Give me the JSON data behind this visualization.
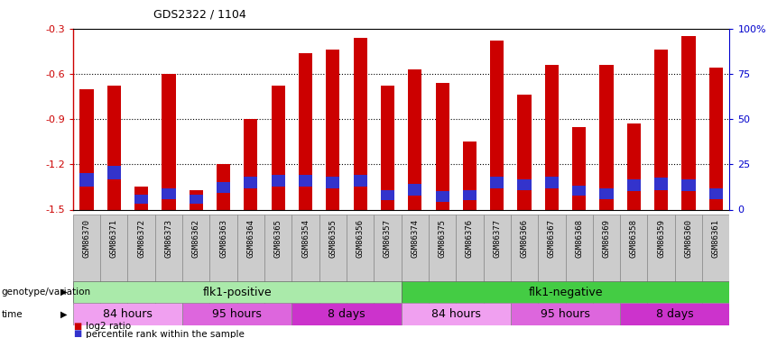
{
  "title": "GDS2322 / 1104",
  "samples": [
    "GSM86370",
    "GSM86371",
    "GSM86372",
    "GSM86373",
    "GSM86362",
    "GSM86363",
    "GSM86364",
    "GSM86365",
    "GSM86354",
    "GSM86355",
    "GSM86356",
    "GSM86357",
    "GSM86374",
    "GSM86375",
    "GSM86376",
    "GSM86377",
    "GSM86366",
    "GSM86367",
    "GSM86368",
    "GSM86369",
    "GSM86358",
    "GSM86359",
    "GSM86360",
    "GSM86361"
  ],
  "log2_values": [
    -0.7,
    -0.68,
    -1.35,
    -0.6,
    -1.37,
    -1.2,
    -0.9,
    -0.68,
    -0.46,
    -0.44,
    -0.36,
    -0.68,
    -0.57,
    -0.66,
    -1.05,
    -0.38,
    -0.74,
    -0.54,
    -0.95,
    -0.54,
    -0.93,
    -0.44,
    -0.35,
    -0.56
  ],
  "percentile_bottom": [
    -1.35,
    -1.3,
    -1.46,
    -1.43,
    -1.46,
    -1.39,
    -1.36,
    -1.35,
    -1.35,
    -1.36,
    -1.35,
    -1.44,
    -1.41,
    -1.45,
    -1.44,
    -1.36,
    -1.37,
    -1.36,
    -1.41,
    -1.43,
    -1.38,
    -1.37,
    -1.38,
    -1.43
  ],
  "percentile_top": [
    -1.26,
    -1.21,
    -1.4,
    -1.36,
    -1.4,
    -1.32,
    -1.28,
    -1.27,
    -1.27,
    -1.28,
    -1.27,
    -1.37,
    -1.33,
    -1.38,
    -1.37,
    -1.28,
    -1.3,
    -1.28,
    -1.34,
    -1.36,
    -1.3,
    -1.29,
    -1.3,
    -1.36
  ],
  "ylim": [
    -1.5,
    -0.3
  ],
  "yticks": [
    -1.5,
    -1.2,
    -0.9,
    -0.6,
    -0.3
  ],
  "right_yticks": [
    0,
    25,
    50,
    75,
    100
  ],
  "right_yticklabels": [
    "0",
    "25",
    "50",
    "75",
    "100%"
  ],
  "bar_color": "#cc0000",
  "percentile_color": "#3333cc",
  "axis_color": "#cc0000",
  "right_axis_color": "#0000cc",
  "groups": [
    {
      "label": "flk1-positive",
      "start": 0,
      "end": 12,
      "color": "#aaeaaa"
    },
    {
      "label": "flk1-negative",
      "start": 12,
      "end": 24,
      "color": "#44cc44"
    }
  ],
  "time_groups": [
    {
      "label": "84 hours",
      "start": 0,
      "end": 4,
      "color": "#f0a0f0"
    },
    {
      "label": "95 hours",
      "start": 4,
      "end": 8,
      "color": "#dd66dd"
    },
    {
      "label": "8 days",
      "start": 8,
      "end": 12,
      "color": "#cc33cc"
    },
    {
      "label": "84 hours",
      "start": 12,
      "end": 16,
      "color": "#f0a0f0"
    },
    {
      "label": "95 hours",
      "start": 16,
      "end": 20,
      "color": "#dd66dd"
    },
    {
      "label": "8 days",
      "start": 20,
      "end": 24,
      "color": "#cc33cc"
    }
  ],
  "legend_items": [
    {
      "label": "log2 ratio",
      "color": "#cc0000"
    },
    {
      "label": "percentile rank within the sample",
      "color": "#3333cc"
    }
  ],
  "tick_bg_color": "#d0d0d0"
}
